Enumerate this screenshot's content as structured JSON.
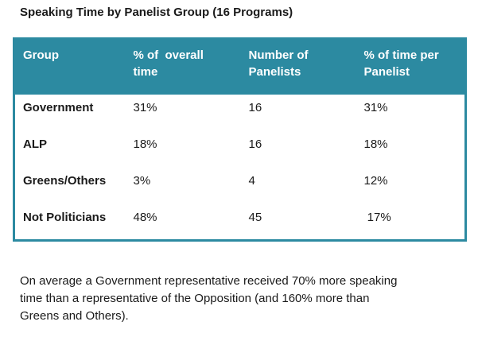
{
  "title": "Speaking Time by Panelist Group (16 Programs)",
  "colors": {
    "table_accent": "#2c8aa1",
    "header_text": "#ffffff",
    "body_text": "#1a1a1a",
    "page_background": "#ffffff"
  },
  "chart_data": {
    "type": "table",
    "title": "Speaking Time by Panelist Group (16 Programs)",
    "columns": [
      "Group",
      "% of overall time",
      "Number of Panelists",
      "% of time per Panelist"
    ],
    "rows": [
      {
        "group": "Government",
        "pct_overall_time": "31%",
        "number_of_panelists": 16,
        "pct_time_per_panelist": "31%"
      },
      {
        "group": "ALP",
        "pct_overall_time": "18%",
        "number_of_panelists": 16,
        "pct_time_per_panelist": "18%"
      },
      {
        "group": "Greens/Others",
        "pct_overall_time": "3%",
        "number_of_panelists": 4,
        "pct_time_per_panelist": "12%"
      },
      {
        "group": "Not Politicians",
        "pct_overall_time": "48%",
        "number_of_panelists": 45,
        "pct_time_per_panelist": "17%"
      }
    ]
  },
  "table": {
    "headers": [
      "Group",
      "% of  overall\ntime",
      "Number of\nPanelists",
      "% of time per\nPanelist"
    ],
    "rows": [
      {
        "cells": [
          "Government",
          "31%",
          "16",
          "31%"
        ]
      },
      {
        "cells": [
          "ALP",
          "18%",
          "16",
          "18%"
        ]
      },
      {
        "cells": [
          "Greens/Others",
          "3%",
          "4",
          "12%"
        ]
      },
      {
        "cells": [
          "Not Politicians",
          "48%",
          "45",
          " 17%"
        ]
      }
    ]
  },
  "footer": "On average a Government representative received 70% more speaking\ntime than a representative of the Opposition (and 160% more than\nGreens and Others)."
}
